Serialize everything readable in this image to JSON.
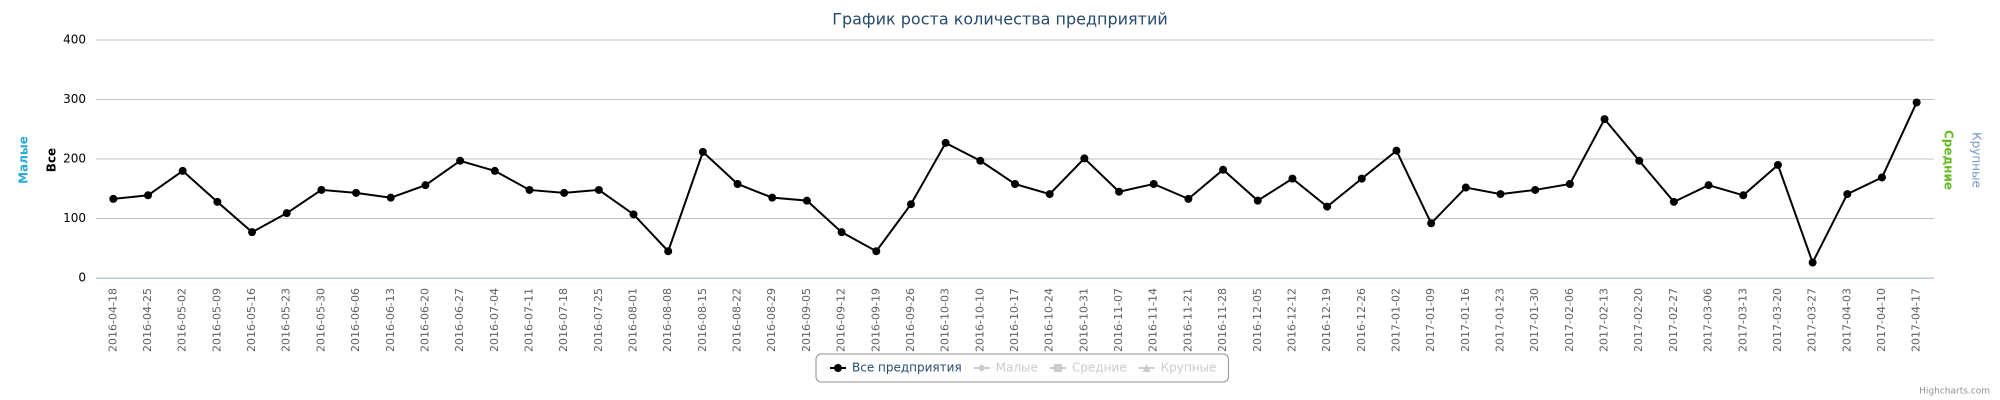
{
  "chart_data": {
    "type": "line",
    "title": "График роста количества предприятий",
    "categories": [
      "2016-04-18",
      "2016-04-25",
      "2016-05-02",
      "2016-05-09",
      "2016-05-16",
      "2016-05-23",
      "2016-05-30",
      "2016-06-06",
      "2016-06-13",
      "2016-06-20",
      "2016-06-27",
      "2016-07-04",
      "2016-07-11",
      "2016-07-18",
      "2016-07-25",
      "2016-08-01",
      "2016-08-08",
      "2016-08-15",
      "2016-08-22",
      "2016-08-29",
      "2016-09-05",
      "2016-09-12",
      "2016-09-19",
      "2016-09-26",
      "2016-10-03",
      "2016-10-10",
      "2016-10-17",
      "2016-10-24",
      "2016-10-31",
      "2016-11-07",
      "2016-11-14",
      "2016-11-21",
      "2016-11-28",
      "2016-12-05",
      "2016-12-12",
      "2016-12-19",
      "2016-12-26",
      "2017-01-02",
      "2017-01-09",
      "2017-01-16",
      "2017-01-23",
      "2017-01-30",
      "2017-02-06",
      "2017-02-13",
      "2017-02-20",
      "2017-02-27",
      "2017-03-06",
      "2017-03-13",
      "2017-03-20",
      "2017-03-27",
      "2017-04-03",
      "2017-04-10",
      "2017-04-17"
    ],
    "series": [
      {
        "name": "Все предприятия",
        "color": "#000000",
        "values": [
          133,
          139,
          180,
          128,
          77,
          109,
          148,
          143,
          135,
          156,
          197,
          180,
          148,
          143,
          148,
          107,
          45,
          212,
          158,
          135,
          130,
          77,
          45,
          124,
          227,
          197,
          158,
          141,
          201,
          145,
          158,
          133,
          182,
          130,
          167,
          120,
          167,
          214,
          92,
          152,
          141,
          148,
          158,
          267,
          197,
          128,
          156,
          139,
          190,
          26,
          141,
          169,
          295
        ]
      }
    ],
    "hidden_series": [
      {
        "name": "Малые",
        "color": "#cccccc"
      },
      {
        "name": "Средние",
        "color": "#cccccc"
      },
      {
        "name": "Крупные",
        "color": "#cccccc"
      }
    ],
    "left_axis_titles": [
      {
        "text": "Малые",
        "color": "#2caad8"
      },
      {
        "text": "Все",
        "color": "#000000"
      }
    ],
    "right_axis_titles": [
      {
        "text": "Средние",
        "color": "#66bb22"
      },
      {
        "text": "Крупные",
        "color": "#7799cc"
      }
    ],
    "ylim": [
      0,
      400
    ],
    "yticks": [
      0,
      100,
      200,
      300,
      400
    ],
    "grid": true,
    "credits": "Highcharts.com"
  }
}
